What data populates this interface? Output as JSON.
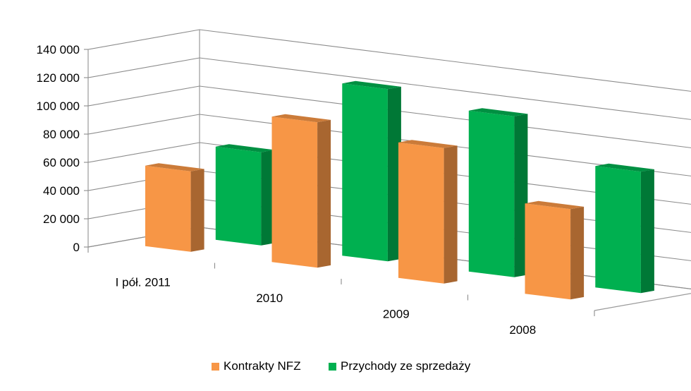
{
  "chart_data": {
    "type": "bar",
    "title": "",
    "xlabel": "",
    "ylabel": "",
    "ylim": [
      0,
      140000
    ],
    "yticks": [
      0,
      20000,
      40000,
      60000,
      80000,
      100000,
      120000,
      140000
    ],
    "ytick_labels": [
      "0",
      "20 000",
      "40 000",
      "60 000",
      "80 000",
      "100 000",
      "120 000",
      "140 000"
    ],
    "categories": [
      "I pół. 2011",
      "2010",
      "2009",
      "2008"
    ],
    "series": [
      {
        "name": "Kontrakty NFZ",
        "values": [
          57000,
          103000,
          96000,
          64000
        ],
        "color": "#f79646"
      },
      {
        "name": "Przychody ze sprzedaży",
        "values": [
          66000,
          122000,
          114000,
          86000
        ],
        "color": "#00b050"
      }
    ],
    "grid": true,
    "legend": "bottom",
    "style": "3d-column"
  }
}
